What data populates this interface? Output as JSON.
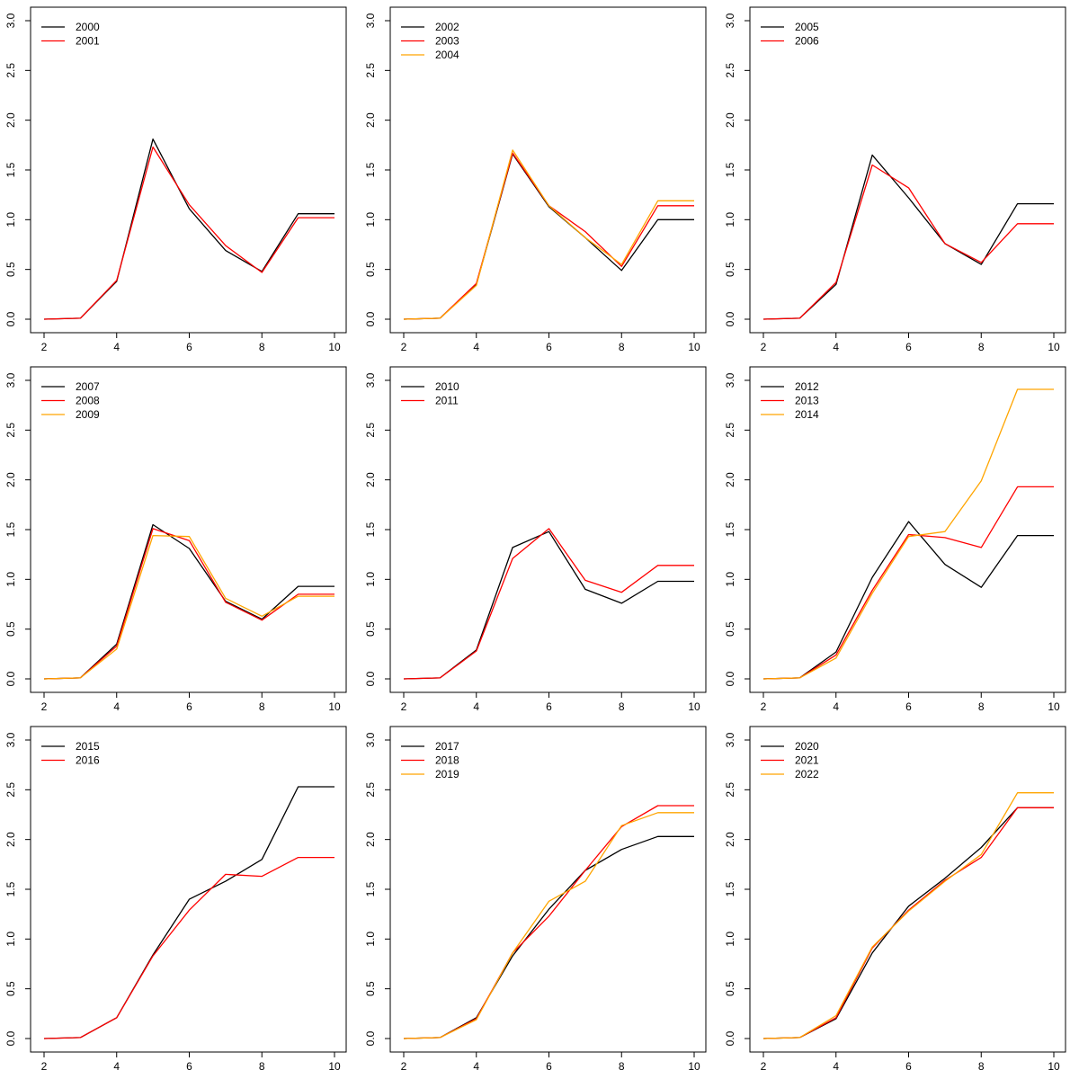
{
  "chart_data": [
    {
      "type": "line",
      "x": [
        2,
        3,
        4,
        5,
        6,
        7,
        8,
        9,
        10
      ],
      "xticks": [
        2,
        4,
        6,
        8,
        10
      ],
      "yticks": [
        "0.0",
        "0.5",
        "1.0",
        "1.5",
        "2.0",
        "2.5",
        "3.0"
      ],
      "xlim": [
        2,
        10
      ],
      "ylim": [
        0,
        3
      ],
      "legend_position": "top-left",
      "series": [
        {
          "name": "2000",
          "color": "#000000",
          "values": [
            0.0,
            0.01,
            0.38,
            1.81,
            1.11,
            0.69,
            0.48,
            1.06,
            1.06
          ]
        },
        {
          "name": "2001",
          "color": "#ff0000",
          "values": [
            0.0,
            0.01,
            0.39,
            1.73,
            1.15,
            0.74,
            0.47,
            1.02,
            1.02
          ]
        }
      ]
    },
    {
      "type": "line",
      "x": [
        2,
        3,
        4,
        5,
        6,
        7,
        8,
        9,
        10
      ],
      "xticks": [
        2,
        4,
        6,
        8,
        10
      ],
      "yticks": [
        "0.0",
        "0.5",
        "1.0",
        "1.5",
        "2.0",
        "2.5",
        "3.0"
      ],
      "xlim": [
        2,
        10
      ],
      "ylim": [
        0,
        3
      ],
      "legend_position": "top-left",
      "series": [
        {
          "name": "2002",
          "color": "#000000",
          "values": [
            0.0,
            0.01,
            0.35,
            1.66,
            1.13,
            0.82,
            0.49,
            1.0,
            1.0
          ]
        },
        {
          "name": "2003",
          "color": "#ff0000",
          "values": [
            0.0,
            0.01,
            0.36,
            1.67,
            1.14,
            0.88,
            0.53,
            1.14,
            1.14
          ]
        },
        {
          "name": "2004",
          "color": "#ffa500",
          "values": [
            0.0,
            0.01,
            0.34,
            1.7,
            1.14,
            0.82,
            0.55,
            1.19,
            1.19
          ]
        }
      ]
    },
    {
      "type": "line",
      "x": [
        2,
        3,
        4,
        5,
        6,
        7,
        8,
        9,
        10
      ],
      "xticks": [
        2,
        4,
        6,
        8,
        10
      ],
      "yticks": [
        "0.0",
        "0.5",
        "1.0",
        "1.5",
        "2.0",
        "2.5",
        "3.0"
      ],
      "xlim": [
        2,
        10
      ],
      "ylim": [
        0,
        3
      ],
      "legend_position": "top-left",
      "series": [
        {
          "name": "2005",
          "color": "#000000",
          "values": [
            0.0,
            0.01,
            0.35,
            1.65,
            1.22,
            0.76,
            0.55,
            1.16,
            1.16
          ]
        },
        {
          "name": "2006",
          "color": "#ff0000",
          "values": [
            0.0,
            0.01,
            0.37,
            1.55,
            1.32,
            0.76,
            0.57,
            0.96,
            0.96
          ]
        }
      ]
    },
    {
      "type": "line",
      "x": [
        2,
        3,
        4,
        5,
        6,
        7,
        8,
        9,
        10
      ],
      "xticks": [
        2,
        4,
        6,
        8,
        10
      ],
      "yticks": [
        "0.0",
        "0.5",
        "1.0",
        "1.5",
        "2.0",
        "2.5",
        "3.0"
      ],
      "xlim": [
        2,
        10
      ],
      "ylim": [
        0,
        3
      ],
      "legend_position": "top-left",
      "series": [
        {
          "name": "2007",
          "color": "#000000",
          "values": [
            0.0,
            0.01,
            0.35,
            1.55,
            1.31,
            0.78,
            0.6,
            0.93,
            0.93
          ]
        },
        {
          "name": "2008",
          "color": "#ff0000",
          "values": [
            0.0,
            0.01,
            0.33,
            1.51,
            1.39,
            0.77,
            0.59,
            0.85,
            0.85
          ]
        },
        {
          "name": "2009",
          "color": "#ffa500",
          "values": [
            0.0,
            0.01,
            0.3,
            1.44,
            1.43,
            0.81,
            0.63,
            0.83,
            0.83
          ]
        }
      ]
    },
    {
      "type": "line",
      "x": [
        2,
        3,
        4,
        5,
        6,
        7,
        8,
        9,
        10
      ],
      "xticks": [
        2,
        4,
        6,
        8,
        10
      ],
      "yticks": [
        "0.0",
        "0.5",
        "1.0",
        "1.5",
        "2.0",
        "2.5",
        "3.0"
      ],
      "xlim": [
        2,
        10
      ],
      "ylim": [
        0,
        3
      ],
      "legend_position": "top-left",
      "series": [
        {
          "name": "2010",
          "color": "#000000",
          "values": [
            0.0,
            0.01,
            0.29,
            1.32,
            1.48,
            0.9,
            0.76,
            0.98,
            0.98
          ]
        },
        {
          "name": "2011",
          "color": "#ff0000",
          "values": [
            0.0,
            0.01,
            0.28,
            1.21,
            1.51,
            0.99,
            0.87,
            1.14,
            1.14
          ]
        }
      ]
    },
    {
      "type": "line",
      "x": [
        2,
        3,
        4,
        5,
        6,
        7,
        8,
        9,
        10
      ],
      "xticks": [
        2,
        4,
        6,
        8,
        10
      ],
      "yticks": [
        "0.0",
        "0.5",
        "1.0",
        "1.5",
        "2.0",
        "2.5",
        "3.0"
      ],
      "xlim": [
        2,
        10
      ],
      "ylim": [
        0,
        3
      ],
      "legend_position": "top-left",
      "series": [
        {
          "name": "2012",
          "color": "#000000",
          "values": [
            0.0,
            0.01,
            0.27,
            1.02,
            1.58,
            1.15,
            0.92,
            1.44,
            1.44
          ]
        },
        {
          "name": "2013",
          "color": "#ff0000",
          "values": [
            0.0,
            0.01,
            0.24,
            0.89,
            1.45,
            1.42,
            1.32,
            1.93,
            1.93
          ]
        },
        {
          "name": "2014",
          "color": "#ffa500",
          "values": [
            0.0,
            0.01,
            0.21,
            0.86,
            1.43,
            1.48,
            1.99,
            2.91,
            2.91
          ]
        }
      ]
    },
    {
      "type": "line",
      "x": [
        2,
        3,
        4,
        5,
        6,
        7,
        8,
        9,
        10
      ],
      "xticks": [
        2,
        4,
        6,
        8,
        10
      ],
      "yticks": [
        "0.0",
        "0.5",
        "1.0",
        "1.5",
        "2.0",
        "2.5",
        "3.0"
      ],
      "xlim": [
        2,
        10
      ],
      "ylim": [
        0,
        3
      ],
      "legend_position": "top-left",
      "series": [
        {
          "name": "2015",
          "color": "#000000",
          "values": [
            0.0,
            0.01,
            0.21,
            0.84,
            1.4,
            1.58,
            1.8,
            2.53,
            2.53
          ]
        },
        {
          "name": "2016",
          "color": "#ff0000",
          "values": [
            0.0,
            0.01,
            0.21,
            0.83,
            1.29,
            1.65,
            1.63,
            1.82,
            1.82
          ]
        }
      ]
    },
    {
      "type": "line",
      "x": [
        2,
        3,
        4,
        5,
        6,
        7,
        8,
        9,
        10
      ],
      "xticks": [
        2,
        4,
        6,
        8,
        10
      ],
      "yticks": [
        "0.0",
        "0.5",
        "1.0",
        "1.5",
        "2.0",
        "2.5",
        "3.0"
      ],
      "xlim": [
        2,
        10
      ],
      "ylim": [
        0,
        3
      ],
      "legend_position": "top-left",
      "series": [
        {
          "name": "2017",
          "color": "#000000",
          "values": [
            0.0,
            0.01,
            0.21,
            0.83,
            1.3,
            1.69,
            1.9,
            2.03,
            2.03
          ]
        },
        {
          "name": "2018",
          "color": "#ff0000",
          "values": [
            0.0,
            0.01,
            0.2,
            0.86,
            1.23,
            1.69,
            2.13,
            2.34,
            2.34
          ]
        },
        {
          "name": "2019",
          "color": "#ffa500",
          "values": [
            0.0,
            0.01,
            0.19,
            0.86,
            1.38,
            1.58,
            2.14,
            2.27,
            2.27
          ]
        }
      ]
    },
    {
      "type": "line",
      "x": [
        2,
        3,
        4,
        5,
        6,
        7,
        8,
        9,
        10
      ],
      "xticks": [
        2,
        4,
        6,
        8,
        10
      ],
      "yticks": [
        "0.0",
        "0.5",
        "1.0",
        "1.5",
        "2.0",
        "2.5",
        "3.0"
      ],
      "xlim": [
        2,
        10
      ],
      "ylim": [
        0,
        3
      ],
      "legend_position": "top-left",
      "series": [
        {
          "name": "2020",
          "color": "#000000",
          "values": [
            0.0,
            0.01,
            0.2,
            0.86,
            1.33,
            1.61,
            1.92,
            2.32,
            2.32
          ]
        },
        {
          "name": "2021",
          "color": "#ff0000",
          "values": [
            0.0,
            0.01,
            0.21,
            0.91,
            1.29,
            1.59,
            1.82,
            2.32,
            2.32
          ]
        },
        {
          "name": "2022",
          "color": "#ffa500",
          "values": [
            0.0,
            0.01,
            0.23,
            0.92,
            1.28,
            1.58,
            1.85,
            2.47,
            2.47
          ]
        }
      ]
    }
  ]
}
